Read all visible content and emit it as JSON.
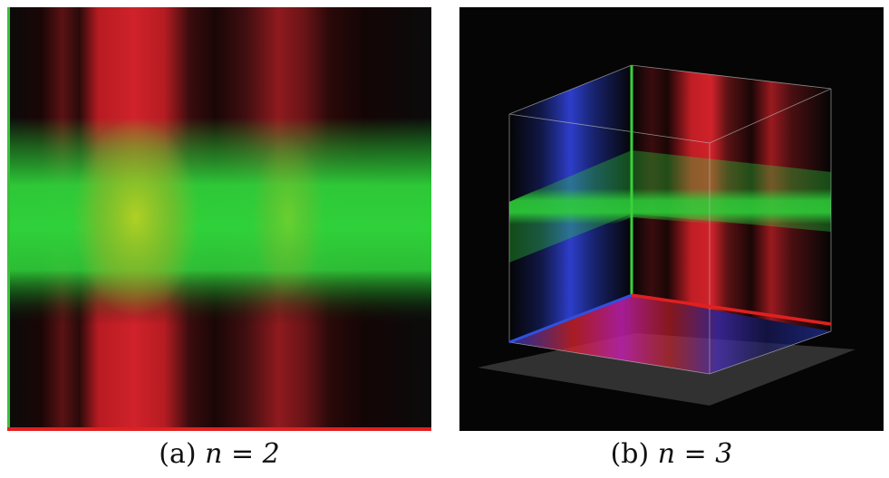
{
  "figure": {
    "panels": [
      {
        "id": "a",
        "caption_label": "(a)",
        "caption_equation": "n = 2"
      },
      {
        "id": "b",
        "caption_label": "(b)",
        "caption_equation": "n = 3"
      }
    ],
    "colors": {
      "red": "#d0222a",
      "green": "#2fd13a",
      "blue": "#2a3fd0",
      "background": "#0b0b0b",
      "ground": "#3a3a3a"
    }
  }
}
